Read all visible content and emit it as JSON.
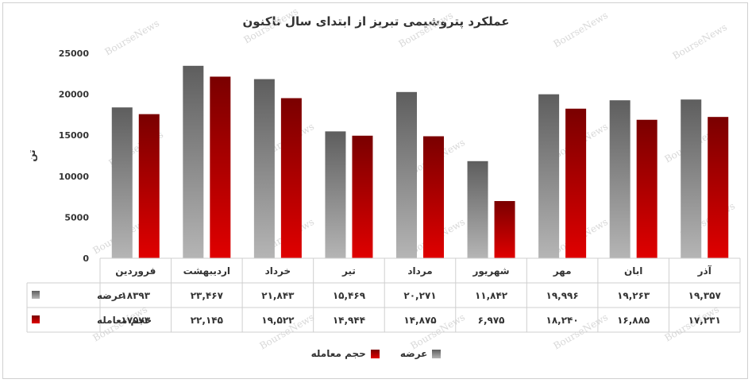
{
  "chart_data": {
    "type": "bar",
    "title": "عملکرد پتروشیمی تبریز از ابتدای سال تاکنون",
    "ylabel": "تن",
    "ylim": [
      0,
      25000
    ],
    "yticks": [
      "0",
      "5000",
      "10000",
      "15000",
      "20000",
      "25000"
    ],
    "categories": [
      "فروردین",
      "اردیبهشت",
      "خرداد",
      "تیر",
      "مرداد",
      "شهریور",
      "مهر",
      "ابان",
      "آذر"
    ],
    "series": [
      {
        "name": "عرضه",
        "color": "#6b6b6b",
        "values": [
          18393,
          23467,
          21843,
          15469,
          20271,
          11842,
          19996,
          19263,
          19357
        ],
        "labels": [
          "۱۸۳۹۳",
          "۲۳,۴۶۷",
          "۲۱,۸۴۳",
          "۱۵,۴۶۹",
          "۲۰,۲۷۱",
          "۱۱,۸۴۲",
          "۱۹,۹۹۶",
          "۱۹,۲۶۳",
          "۱۹,۳۵۷"
        ]
      },
      {
        "name": "حجم معامله",
        "color": "#b00000",
        "values": [
          17573,
          22145,
          19522,
          14944,
          14875,
          6975,
          18240,
          16885,
          17231
        ],
        "labels": [
          "۱۷۵۷۳",
          "۲۲,۱۴۵",
          "۱۹,۵۲۲",
          "۱۴,۹۴۴",
          "۱۴,۸۷۵",
          "۶,۹۷۵",
          "۱۸,۲۴۰",
          "۱۶,۸۸۵",
          "۱۷,۲۳۱"
        ]
      }
    ],
    "legend_position": "bottom",
    "grid": false,
    "data_table": true
  },
  "watermark": "BourseNews"
}
